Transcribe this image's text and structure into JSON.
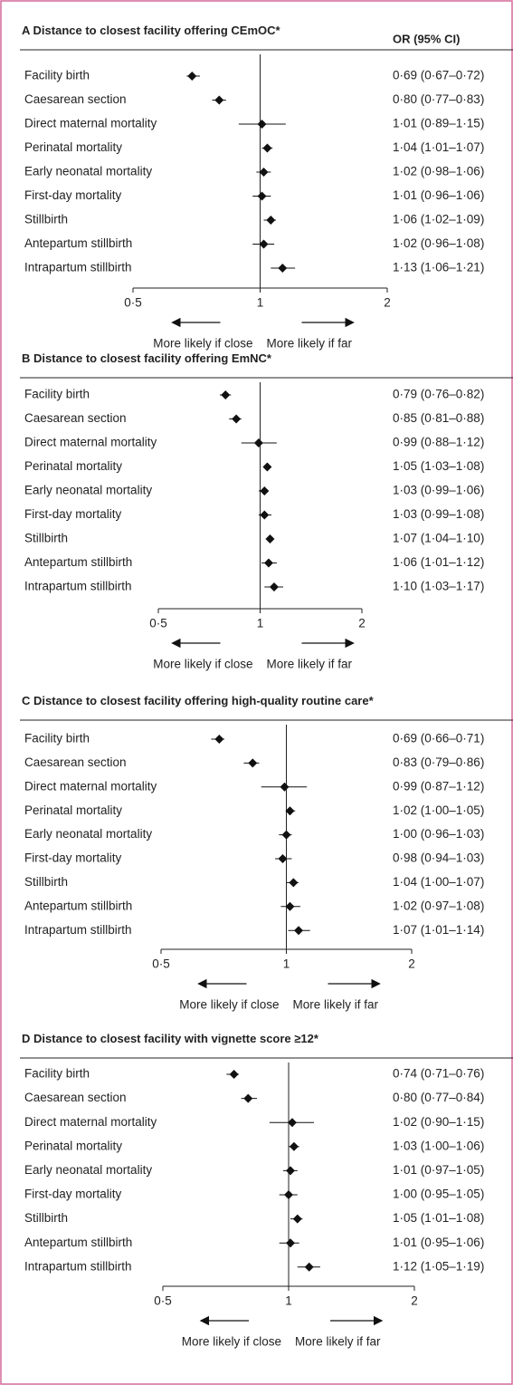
{
  "chart_data": [
    {
      "type": "forest",
      "label": "A",
      "title": "Distance to closest facility offering CEmOC*",
      "column_header": "OR (95% CI)",
      "categories": [
        "Facility birth",
        "Caesarean section",
        "Direct maternal mortality",
        "Perinatal mortality",
        "Early neonatal mortality",
        "First-day mortality",
        "Stillbirth",
        "Antepartum stillbirth",
        "Intrapartum stillbirth"
      ],
      "values": [
        0.69,
        0.8,
        1.01,
        1.04,
        1.02,
        1.01,
        1.06,
        1.02,
        1.13
      ],
      "lower": [
        0.67,
        0.77,
        0.89,
        1.01,
        0.98,
        0.96,
        1.02,
        0.96,
        1.06
      ],
      "upper": [
        0.72,
        0.83,
        1.15,
        1.07,
        1.06,
        1.06,
        1.09,
        1.08,
        1.21
      ],
      "value_labels": [
        "0·69 (0·67–0·72)",
        "0·80 (0·77–0·83)",
        "1·01 (0·89–1·15)",
        "1·04 (1·01–1·07)",
        "1·02 (0·98–1·06)",
        "1·01 (0·96–1·06)",
        "1·06 (1·02–1·09)",
        "1·02 (0·96–1·08)",
        "1·13 (1·06–1·21)"
      ],
      "xscale": "log",
      "xlim": [
        0.5,
        2
      ],
      "xticks": [
        {
          "value": 0.5,
          "label": "0·5"
        },
        1,
        2
      ],
      "arrow_left_label": "More likely if close",
      "arrow_right_label": "More likely if far",
      "color": "#111111"
    },
    {
      "type": "forest",
      "label": "B",
      "title": "Distance to closest facility offering EmNC*",
      "categories": [
        "Facility birth",
        "Caesarean section",
        "Direct maternal mortality",
        "Perinatal mortality",
        "Early neonatal mortality",
        "First-day mortality",
        "Stillbirth",
        "Antepartum stillbirth",
        "Intrapartum stillbirth"
      ],
      "values": [
        0.79,
        0.85,
        0.99,
        1.05,
        1.03,
        1.03,
        1.07,
        1.06,
        1.1
      ],
      "lower": [
        0.76,
        0.81,
        0.88,
        1.03,
        0.99,
        0.99,
        1.04,
        1.01,
        1.03
      ],
      "upper": [
        0.82,
        0.88,
        1.12,
        1.08,
        1.06,
        1.08,
        1.1,
        1.12,
        1.17
      ],
      "value_labels": [
        "0·79 (0·76–0·82)",
        "0·85 (0·81–0·88)",
        "0·99 (0·88–1·12)",
        "1·05 (1·03–1·08)",
        "1·03 (0·99–1·06)",
        "1·03 (0·99–1·08)",
        "1·07 (1·04–1·10)",
        "1·06 (1·01–1·12)",
        "1·10 (1·03–1·17)"
      ],
      "xscale": "log",
      "xlim": [
        0.5,
        2
      ],
      "xticks": [
        {
          "value": 0.5,
          "label": "0·5"
        },
        1,
        2
      ],
      "arrow_left_label": "More likely if close",
      "arrow_right_label": "More likely if far",
      "color": "#111111"
    },
    {
      "type": "forest",
      "label": "C",
      "title": "Distance to closest facility offering high-quality routine care*",
      "categories": [
        "Facility birth",
        "Caesarean section",
        "Direct maternal mortality",
        "Perinatal mortality",
        "Early neonatal mortality",
        "First-day mortality",
        "Stillbirth",
        "Antepartum stillbirth",
        "Intrapartum stillbirth"
      ],
      "values": [
        0.69,
        0.83,
        0.99,
        1.02,
        1.0,
        0.98,
        1.04,
        1.02,
        1.07
      ],
      "lower": [
        0.66,
        0.79,
        0.87,
        1.0,
        0.96,
        0.94,
        1.0,
        0.97,
        1.01
      ],
      "upper": [
        0.71,
        0.86,
        1.12,
        1.05,
        1.03,
        1.03,
        1.07,
        1.08,
        1.14
      ],
      "value_labels": [
        "0·69 (0·66–0·71)",
        "0·83 (0·79–0·86)",
        "0·99 (0·87–1·12)",
        "1·02 (1·00–1·05)",
        "1·00 (0·96–1·03)",
        "0·98 (0·94–1·03)",
        "1·04 (1·00–1·07)",
        "1·02 (0·97–1·08)",
        "1·07 (1·01–1·14)"
      ],
      "xscale": "log",
      "xlim": [
        0.5,
        2
      ],
      "xticks": [
        {
          "value": 0.5,
          "label": "0·5"
        },
        1,
        2
      ],
      "arrow_left_label": "More likely if close",
      "arrow_right_label": "More likely if far",
      "color": "#111111"
    },
    {
      "type": "forest",
      "label": "D",
      "title": "Distance to closest facility with vignette score ≥12*",
      "categories": [
        "Facility birth",
        "Caesarean section",
        "Direct maternal mortality",
        "Perinatal mortality",
        "Early neonatal mortality",
        "First-day mortality",
        "Stillbirth",
        "Antepartum stillbirth",
        "Intrapartum stillbirth"
      ],
      "values": [
        0.74,
        0.8,
        1.02,
        1.03,
        1.01,
        1.0,
        1.05,
        1.01,
        1.12
      ],
      "lower": [
        0.71,
        0.77,
        0.9,
        1.0,
        0.97,
        0.95,
        1.01,
        0.95,
        1.05
      ],
      "upper": [
        0.76,
        0.84,
        1.15,
        1.06,
        1.05,
        1.05,
        1.08,
        1.06,
        1.19
      ],
      "value_labels": [
        "0·74 (0·71–0·76)",
        "0·80 (0·77–0·84)",
        "1·02 (0·90–1·15)",
        "1·03 (1·00–1·06)",
        "1·01 (0·97–1·05)",
        "1·00 (0·95–1·05)",
        "1·05 (1·01–1·08)",
        "1·01 (0·95–1·06)",
        "1·12 (1·05–1·19)"
      ],
      "xscale": "log",
      "xlim": [
        0.5,
        2
      ],
      "xticks": [
        {
          "value": 0.5,
          "label": "0·5"
        },
        1,
        2
      ],
      "arrow_left_label": "More likely if close",
      "arrow_right_label": "More likely if far",
      "color": "#111111"
    }
  ]
}
